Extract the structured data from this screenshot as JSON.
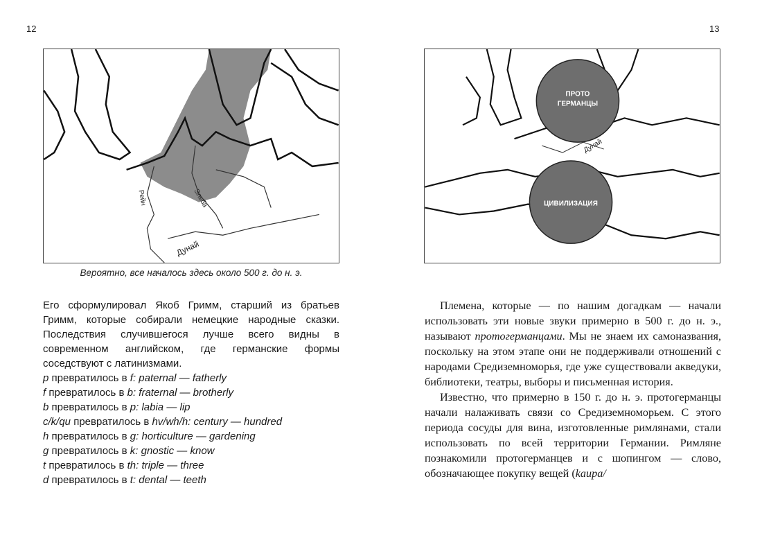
{
  "left_page": {
    "page_number": "12",
    "map": {
      "rivers": [
        "Рейн",
        "Эльба",
        "Дунай"
      ],
      "region_color": "#8c8c8c"
    },
    "caption": "Вероятно, все началось здесь около 500 г. до н. э.",
    "paragraph": "Его сформулировал Якоб Гримм, старший из братьев Гримм, которые собирали немецкие народные сказки. Последствия случившегося лучше всего видны в современном английском, где германские формы соседствуют с латинизмами.",
    "rules": [
      {
        "from": "p",
        "mid": " превратилось в ",
        "to": "f",
        "example": ": paternal — fatherly"
      },
      {
        "from": "f",
        "mid": " превратилось в ",
        "to": "b",
        "example": ": fraternal — brotherly"
      },
      {
        "from": "b",
        "mid": " превратилось в ",
        "to": "p",
        "example": ": labia — lip"
      },
      {
        "from": "c/k/qu",
        "mid": " превратилось в ",
        "to": "hv/wh/h",
        "example": ": century — hundred"
      },
      {
        "from": "h",
        "mid": " превратилось в ",
        "to": "g",
        "example": ": horticulture — gardening"
      },
      {
        "from": "g",
        "mid": " превратилось в ",
        "to": "k",
        "example": ": gnostic — know"
      },
      {
        "from": "t",
        "mid": " превратилось в ",
        "to": "th",
        "example": ": triple — three"
      },
      {
        "from": "d",
        "mid": " превратилось в ",
        "to": "t",
        "example": ": dental — teeth"
      }
    ]
  },
  "right_page": {
    "page_number": "13",
    "map": {
      "circle_top_label_1": "ПРОТО",
      "circle_top_label_2": "ГЕРМАНЦЫ",
      "circle_bottom_label": "ЦИВИЛИЗАЦИЯ",
      "river": "Дунай",
      "circle_color": "#6e6e6e"
    },
    "p1_a": "Племена, которые — по нашим догадкам — начали использовать эти новые звуки примерно в 500 г. до н. э., называют ",
    "p1_em": "протогерманцами",
    "p1_b": ". Мы не знаем их самоназвания, поскольку на этом этапе они не поддерживали отношений с народами Средиземноморья, где уже существовали акведуки, библиотеки, театры, выборы и письменная история.",
    "p2_a": "Известно, что примерно в 150 г. до н. э. протогерманцы начали налаживать связи со Средиземноморьем. С этого периода сосуды для вина, изготовленные римлянами, стали использовать по всей территории Германии. Римляне познакомили протогерманцев и с шопингом — слово, обозначающее покупку вещей (",
    "p2_em": "kaupa/"
  }
}
